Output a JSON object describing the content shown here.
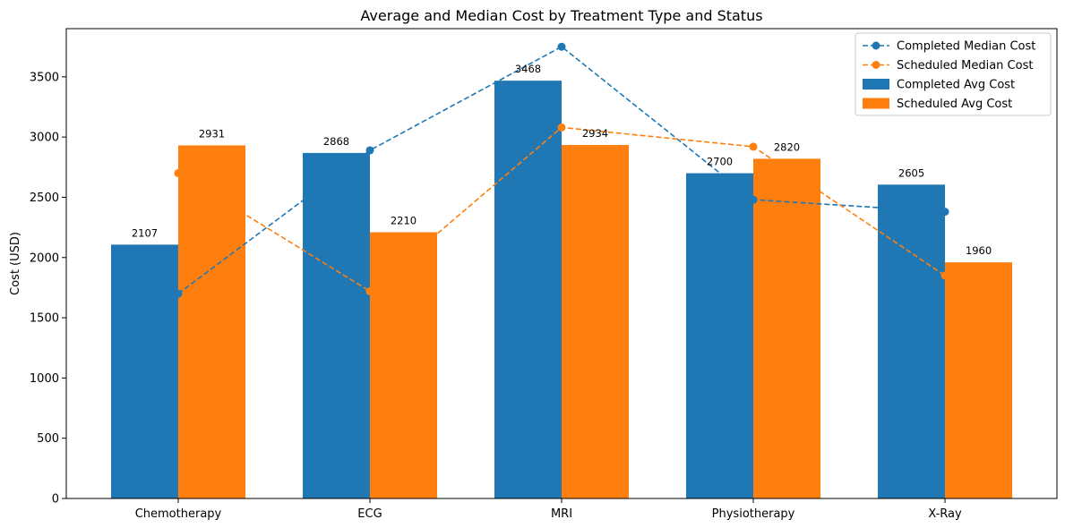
{
  "chart_data": {
    "type": "bar",
    "title": "Average and Median Cost by Treatment Type and Status",
    "xlabel": "",
    "ylabel": "Cost (USD)",
    "ylim": [
      0,
      3900
    ],
    "yticks": [
      0,
      500,
      1000,
      1500,
      2000,
      2500,
      3000,
      3500
    ],
    "categories": [
      "Chemotherapy",
      "ECG",
      "MRI",
      "Physiotherapy",
      "X-Ray"
    ],
    "bar_series": [
      {
        "name": "Completed Avg Cost",
        "color": "#1f77b4",
        "values": [
          2107,
          2868,
          3468,
          2700,
          2605
        ]
      },
      {
        "name": "Scheduled Avg Cost",
        "color": "#ff7f0e",
        "values": [
          2931,
          2210,
          2934,
          2820,
          1960
        ]
      }
    ],
    "line_series": [
      {
        "name": "Completed Median Cost",
        "color": "#1f77b4",
        "style": "dashed",
        "marker": "circle",
        "values": [
          1700,
          2890,
          3750,
          2480,
          2380
        ]
      },
      {
        "name": "Scheduled Median Cost",
        "color": "#ff7f0e",
        "style": "dashed",
        "marker": "circle",
        "values": [
          2700,
          1720,
          3080,
          2920,
          1850
        ]
      }
    ],
    "legend": {
      "position": "top-right",
      "items": [
        "Completed Median Cost",
        "Scheduled Median Cost",
        "Completed Avg Cost",
        "Scheduled Avg Cost"
      ]
    },
    "grid": false
  }
}
